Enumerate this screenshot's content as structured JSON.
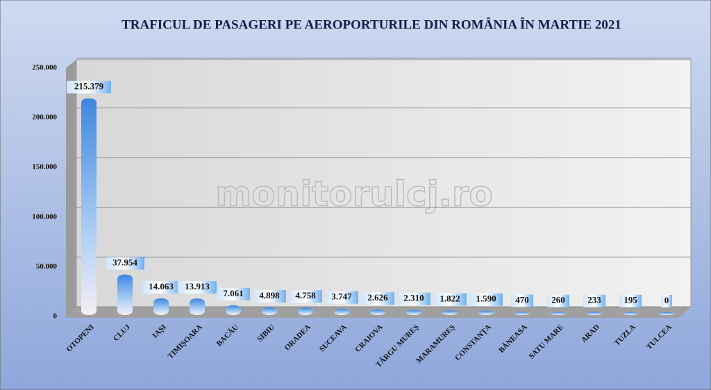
{
  "chart_data": {
    "type": "bar",
    "title": "TRAFICUL DE PASAGERI PE AEROPORTURILE DIN ROMÂNIA ÎN MARTIE 2021",
    "watermark": "monitorulcj.ro",
    "categories": [
      "OTOPENI",
      "CLUJ",
      "IAȘI",
      "TIMIȘOARA",
      "BACĂU",
      "SIBIU",
      "ORADEA",
      "SUCEAVA",
      "CRAIOVA",
      "TÂRGU MUREȘ",
      "MARAMUREȘ",
      "CONSTANȚA",
      "BĂNEASA",
      "SATU MARE",
      "ARAD",
      "TUZLA",
      "TULCEA"
    ],
    "values": [
      215379,
      37954,
      14063,
      13913,
      7061,
      4898,
      4758,
      3747,
      2626,
      2310,
      1822,
      1590,
      470,
      260,
      233,
      195,
      0
    ],
    "value_labels": [
      "215.379",
      "37.954",
      "14.063",
      "13.913",
      "7.061",
      "4.898",
      "4.758",
      "3.747",
      "2.626",
      "2.310",
      "1.822",
      "1.590",
      "470",
      "260",
      "233",
      "195",
      "0"
    ],
    "color": "#4a8fe0",
    "ylim": [
      0,
      250000
    ],
    "yticks": [
      0,
      {
        "value": 50000,
        "label": "50.000"
      },
      {
        "value": 100000,
        "label": "100.000"
      },
      {
        "value": 150000,
        "label": "150.000"
      },
      {
        "value": 200000,
        "label": "200.000"
      },
      {
        "value": 250000,
        "label": "250.000"
      }
    ],
    "grid": true
  }
}
